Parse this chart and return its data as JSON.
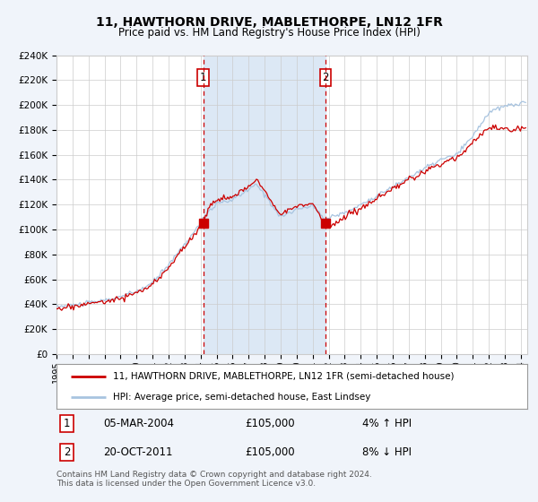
{
  "title": "11, HAWTHORN DRIVE, MABLETHORPE, LN12 1FR",
  "subtitle": "Price paid vs. HM Land Registry's House Price Index (HPI)",
  "property_label": "11, HAWTHORN DRIVE, MABLETHORPE, LN12 1FR (semi-detached house)",
  "hpi_label": "HPI: Average price, semi-detached house, East Lindsey",
  "transaction1_date": "05-MAR-2004",
  "transaction1_price": 105000,
  "transaction1_hpi": "4% ↑ HPI",
  "transaction2_date": "20-OCT-2011",
  "transaction2_price": 105000,
  "transaction2_hpi": "8% ↓ HPI",
  "footer": "Contains HM Land Registry data © Crown copyright and database right 2024.\nThis data is licensed under the Open Government Licence v3.0.",
  "bg_color": "#f0f4fa",
  "plot_bg_color": "#ffffff",
  "shade_color": "#dce8f5",
  "grid_color": "#cccccc",
  "hpi_line_color": "#a8c4e0",
  "property_line_color": "#cc0000",
  "marker_color": "#cc0000",
  "vline_color": "#cc0000",
  "ylim": [
    0,
    240000
  ],
  "ytick_step": 20000,
  "year_start": 1995,
  "year_end": 2024,
  "transaction1_year": 2004.17,
  "transaction2_year": 2011.8,
  "hpi_anchors_x": [
    1995,
    1996,
    1997,
    1998,
    1999,
    2000,
    2001,
    2002,
    2003,
    2004.17,
    2004.5,
    2005,
    2006,
    2007,
    2007.5,
    2008,
    2009,
    2010,
    2011,
    2011.8,
    2012,
    2013,
    2014,
    2015,
    2016,
    2017,
    2018,
    2019,
    2020,
    2021,
    2022,
    2023,
    2024.3
  ],
  "hpi_anchors_y": [
    38000,
    39000,
    41000,
    43000,
    46000,
    50000,
    57000,
    72000,
    88000,
    108000,
    115000,
    120000,
    124000,
    132000,
    136000,
    128000,
    110000,
    116000,
    119000,
    108000,
    110000,
    113000,
    120000,
    127000,
    134000,
    142000,
    149000,
    156000,
    160000,
    175000,
    194000,
    199000,
    202000
  ],
  "prop_anchors_x": [
    1995,
    1996,
    1997,
    1998,
    1999,
    2000,
    2001,
    2002,
    2003,
    2004.17,
    2004.5,
    2005,
    2006,
    2007,
    2007.5,
    2008,
    2009,
    2010,
    2011,
    2011.8,
    2012,
    2012.5,
    2013,
    2014,
    2015,
    2016,
    2017,
    2018,
    2019,
    2020,
    2021,
    2022,
    2023,
    2024.3
  ],
  "prop_anchors_y": [
    36000,
    38000,
    40500,
    42000,
    45000,
    49000,
    55000,
    70000,
    86000,
    105000,
    118000,
    124000,
    126000,
    134000,
    141000,
    131000,
    113000,
    118000,
    121000,
    105000,
    101000,
    106000,
    110000,
    117000,
    124000,
    132000,
    140000,
    146000,
    153000,
    158000,
    170000,
    182000,
    180000,
    182000
  ]
}
